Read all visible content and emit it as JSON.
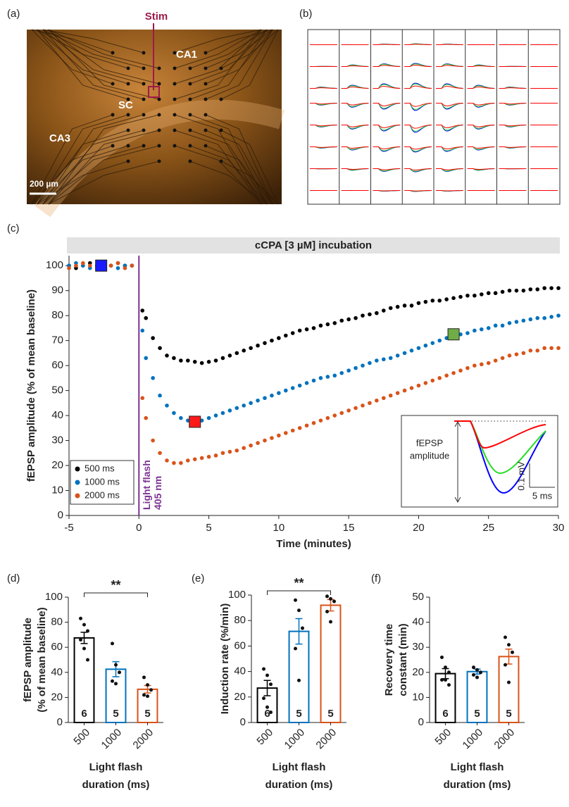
{
  "image_a": {
    "panel": "(a)",
    "stim": "Stim",
    "regions": [
      "CA1",
      "SC",
      "CA3"
    ],
    "scale": "200 µm"
  },
  "traces_b": {
    "panel": "(b)"
  },
  "chart_data": [
    {
      "type": "scatter",
      "panel": "(c)",
      "banner": "cCPA [3 µM] incubation",
      "xlabel": "Time (minutes)",
      "ylabel": "fEPSP amplitude (% of mean baseline)",
      "xlim": [
        -5,
        30
      ],
      "xticks": [
        -5,
        0,
        5,
        10,
        15,
        20,
        25,
        30
      ],
      "ylim": [
        0,
        104
      ],
      "yticks": [
        0,
        10,
        20,
        30,
        40,
        50,
        60,
        70,
        80,
        90,
        100
      ],
      "legend": "lower left",
      "vline": {
        "x": 0,
        "label": [
          "Light flash",
          "405 nm"
        ],
        "color": "#7b3294"
      },
      "x": [
        -5,
        -4.5,
        -4,
        -3.5,
        -3,
        -2.5,
        -2,
        -1.5,
        -1,
        -0.5,
        0.25,
        0.5,
        1,
        1.5,
        2,
        2.5,
        3,
        3.5,
        4,
        4.5,
        5,
        5.5,
        6,
        6.5,
        7,
        7.5,
        8,
        8.5,
        9,
        9.5,
        10,
        10.5,
        11,
        11.5,
        12,
        12.5,
        13,
        13.5,
        14,
        14.5,
        15,
        15.5,
        16,
        16.5,
        17,
        17.5,
        18,
        18.5,
        19,
        19.5,
        20,
        20.5,
        21,
        21.5,
        22,
        22.5,
        23,
        23.5,
        24,
        24.5,
        25,
        25.5,
        26,
        26.5,
        27,
        27.5,
        28,
        28.5,
        29,
        29.5,
        30
      ],
      "series": [
        {
          "name": "500 ms",
          "color": "#000000",
          "values": [
            100,
            99,
            100,
            101,
            100,
            99,
            100,
            101,
            100,
            100,
            82,
            79,
            71,
            67,
            64,
            63,
            62,
            62,
            61.5,
            61,
            61.5,
            62,
            63,
            64,
            65,
            66,
            67,
            68,
            69,
            70,
            71,
            72,
            73,
            74,
            74.5,
            75,
            76,
            76.5,
            77,
            78,
            78.5,
            79,
            80,
            80.5,
            81,
            82,
            83,
            83.5,
            84,
            84,
            85,
            85.5,
            86,
            86,
            86.5,
            87,
            87.5,
            88,
            88,
            88.5,
            89,
            89,
            89.5,
            90,
            90,
            90,
            90.5,
            90.5,
            91,
            91,
            91
          ]
        },
        {
          "name": "1000 ms",
          "color": "#0072bd",
          "values": [
            100,
            101,
            100,
            99,
            100,
            101,
            100,
            99,
            100,
            100,
            74,
            63,
            55,
            48,
            44,
            41,
            39,
            38,
            37.5,
            38,
            39,
            40,
            41,
            42,
            43,
            44,
            45,
            46,
            47,
            48,
            49,
            50,
            51,
            52,
            53,
            54,
            55,
            55.5,
            56,
            57,
            58,
            59,
            60,
            61,
            62,
            62.5,
            63,
            64,
            65,
            66,
            67,
            68,
            69,
            70,
            71,
            72,
            72.5,
            73,
            74,
            74.5,
            75,
            76,
            76,
            77,
            77.5,
            78,
            78.5,
            79,
            79,
            79.5,
            80
          ]
        },
        {
          "name": "2000 ms",
          "color": "#d95319",
          "values": [
            99,
            100,
            101,
            100,
            99,
            100,
            100,
            101,
            99,
            100,
            47,
            39,
            30,
            25,
            22,
            21,
            21,
            22,
            22.5,
            23,
            23.5,
            24,
            25,
            25.5,
            26,
            27,
            28,
            29,
            30,
            31,
            32,
            33,
            34,
            35,
            36,
            37,
            38,
            39,
            40,
            41,
            42,
            43,
            44,
            45,
            46,
            47,
            48,
            49,
            50,
            51,
            52,
            53,
            54,
            55,
            56,
            57,
            58,
            59,
            60,
            60.5,
            61,
            62,
            63,
            64,
            64.5,
            65,
            66,
            66,
            67,
            67,
            67
          ]
        }
      ],
      "markers": [
        {
          "x": -2.7,
          "y": 100,
          "color": "#1a1aff"
        },
        {
          "x": 4,
          "y": 37.5,
          "color": "#ff1a1a"
        },
        {
          "x": 22.5,
          "y": 72.5,
          "color": "#70ad47"
        }
      ],
      "inset": {
        "ylabel": [
          "fEPSP",
          "amplitude"
        ],
        "scale_y": "0.1 mV",
        "scale_x": "5 ms"
      }
    },
    {
      "type": "bar",
      "panel": "(d)",
      "ylabel": [
        "fEPSP amplitude",
        "(% of mean baseline)"
      ],
      "xlabel": [
        "Light flash",
        "duration (ms)"
      ],
      "categories": [
        "500",
        "1000",
        "2000"
      ],
      "colors": [
        "#000000",
        "#0072bd",
        "#d95319"
      ],
      "values": [
        67.5,
        42.5,
        26.5
      ],
      "errors": [
        4.5,
        6,
        3
      ],
      "n": [
        6,
        5,
        5
      ],
      "points": [
        [
          83,
          78,
          73,
          66,
          59,
          50
        ],
        [
          63,
          46,
          40,
          33,
          31
        ],
        [
          36,
          30,
          26,
          22,
          21
        ]
      ],
      "ylim": [
        0,
        100
      ],
      "yticks": [
        0,
        20,
        40,
        60,
        80,
        100
      ],
      "significance": "**"
    },
    {
      "type": "bar",
      "panel": "(e)",
      "ylabel": [
        "Induction rate (%/min)"
      ],
      "xlabel": [
        "Light flash",
        "duration (ms)"
      ],
      "categories": [
        "500",
        "1000",
        "2000"
      ],
      "colors": [
        "#000000",
        "#0072bd",
        "#d95319"
      ],
      "values": [
        27,
        71.5,
        92
      ],
      "errors": [
        6,
        10,
        4.5
      ],
      "n": [
        6,
        5,
        5
      ],
      "points": [
        [
          42,
          37,
          30,
          19,
          12,
          8
        ],
        [
          96,
          88,
          74,
          58,
          33
        ],
        [
          99,
          97,
          95,
          87,
          79
        ]
      ],
      "ylim": [
        0,
        100
      ],
      "yticks": [
        0,
        20,
        40,
        60,
        80,
        100
      ],
      "significance": "**"
    },
    {
      "type": "bar",
      "panel": "(f)",
      "ylabel": [
        "Recovery time",
        "constant (min)"
      ],
      "xlabel": [
        "Light flash",
        "duration (ms)"
      ],
      "categories": [
        "500",
        "1000",
        "2000"
      ],
      "colors": [
        "#000000",
        "#0072bd",
        "#d95319"
      ],
      "values": [
        19.5,
        20.3,
        26.3
      ],
      "errors": [
        2,
        1,
        3
      ],
      "n": [
        6,
        5,
        5
      ],
      "points": [
        [
          26,
          22,
          20,
          17,
          17,
          15
        ],
        [
          22,
          21,
          20,
          19,
          18
        ],
        [
          34,
          31,
          28,
          23,
          16
        ]
      ],
      "ylim": [
        0,
        50
      ],
      "yticks": [
        0,
        10,
        20,
        30,
        40,
        50
      ]
    }
  ]
}
